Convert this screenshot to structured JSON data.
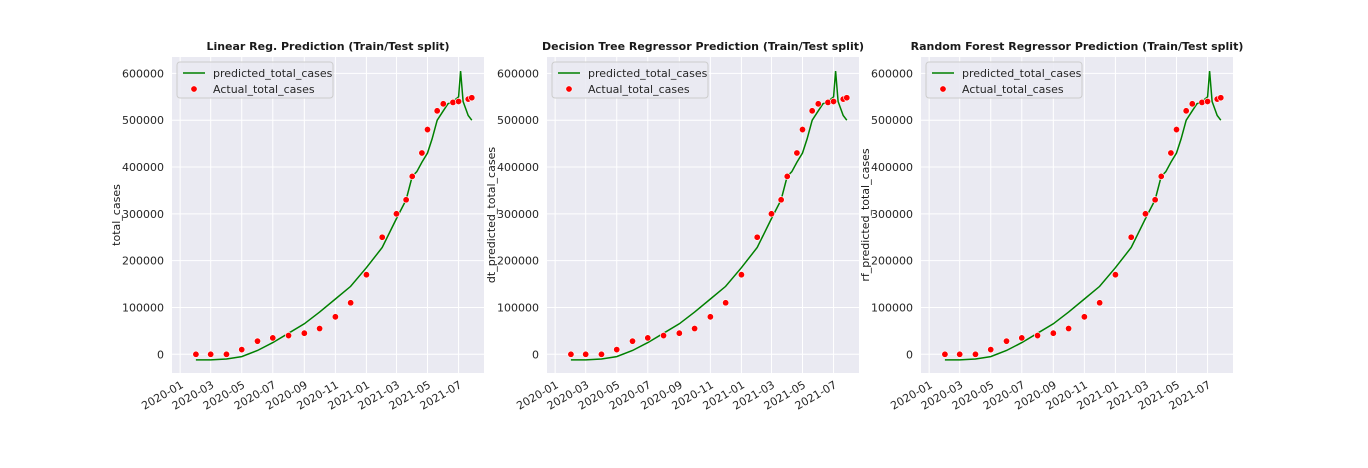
{
  "chart_data": [
    {
      "type": "line",
      "title": "Linear Reg. Prediction (Train/Test split)",
      "xlabel": "",
      "ylabel": "total_cases",
      "x_ticks": [
        "2020-01",
        "2020-03",
        "2020-05",
        "2020-07",
        "2020-09",
        "2020-11",
        "2021-01",
        "2021-03",
        "2021-05",
        "2021-07"
      ],
      "y_ticks": [
        0,
        100000,
        200000,
        300000,
        400000,
        500000,
        600000
      ],
      "y_tick_labels": [
        "0",
        "100000",
        "200000",
        "300000",
        "400000",
        "500000",
        "600000"
      ],
      "xlim": [
        "2019-12-16",
        "2021-08-20"
      ],
      "ylim": [
        -40000,
        635000
      ],
      "grid": true,
      "legend": "top-left",
      "series": [
        {
          "name": "predicted_total_cases",
          "kind": "line",
          "color": "#008000",
          "x": [
            "2020-02-01",
            "2020-03-01",
            "2020-04-01",
            "2020-05-01",
            "2020-06-01",
            "2020-07-01",
            "2020-08-01",
            "2020-09-01",
            "2020-10-01",
            "2020-11-01",
            "2020-12-01",
            "2021-01-01",
            "2021-02-01",
            "2021-03-01",
            "2021-03-20",
            "2021-04-01",
            "2021-04-10",
            "2021-04-20",
            "2021-05-01",
            "2021-05-10",
            "2021-05-20",
            "2021-06-01",
            "2021-06-10",
            "2021-06-20",
            "2021-07-01",
            "2021-07-05",
            "2021-07-10",
            "2021-07-20",
            "2021-07-27"
          ],
          "y": [
            -12000,
            -12000,
            -10000,
            -5000,
            8000,
            25000,
            45000,
            65000,
            90000,
            118000,
            145000,
            185000,
            228000,
            290000,
            330000,
            380000,
            390000,
            410000,
            430000,
            460000,
            500000,
            520000,
            535000,
            540000,
            550000,
            605000,
            540000,
            510000,
            500000
          ]
        },
        {
          "name": "Actual_total_cases",
          "kind": "scatter",
          "color": "#ff0000",
          "x": [
            "2020-02-01",
            "2020-03-01",
            "2020-04-01",
            "2020-05-01",
            "2020-06-01",
            "2020-07-01",
            "2020-08-01",
            "2020-09-01",
            "2020-10-01",
            "2020-11-01",
            "2020-12-01",
            "2021-01-01",
            "2021-02-01",
            "2021-03-01",
            "2021-03-20",
            "2021-04-01",
            "2021-04-20",
            "2021-05-01",
            "2021-05-20",
            "2021-06-01",
            "2021-06-20",
            "2021-07-01",
            "2021-07-20",
            "2021-07-27"
          ],
          "y": [
            0,
            0,
            0,
            10000,
            28000,
            35000,
            40000,
            45000,
            55000,
            80000,
            110000,
            170000,
            250000,
            300000,
            330000,
            380000,
            430000,
            480000,
            520000,
            535000,
            538000,
            540000,
            545000,
            548000
          ]
        }
      ]
    },
    {
      "type": "line",
      "title": "Decision Tree Regressor Prediction (Train/Test split)",
      "xlabel": "",
      "ylabel": "dt_predicted_total_cases",
      "x_ticks": [
        "2020-01",
        "2020-03",
        "2020-05",
        "2020-07",
        "2020-09",
        "2020-11",
        "2021-01",
        "2021-03",
        "2021-05",
        "2021-07"
      ],
      "y_ticks": [
        0,
        100000,
        200000,
        300000,
        400000,
        500000,
        600000
      ],
      "y_tick_labels": [
        "0",
        "100000",
        "200000",
        "300000",
        "400000",
        "500000",
        "600000"
      ],
      "xlim": [
        "2019-12-16",
        "2021-08-20"
      ],
      "ylim": [
        -40000,
        635000
      ],
      "grid": true,
      "legend": "top-left",
      "series": [
        {
          "name": "predicted_total_cases",
          "kind": "line",
          "color": "#008000",
          "x": [
            "2020-02-01",
            "2020-03-01",
            "2020-04-01",
            "2020-05-01",
            "2020-06-01",
            "2020-07-01",
            "2020-08-01",
            "2020-09-01",
            "2020-10-01",
            "2020-11-01",
            "2020-12-01",
            "2021-01-01",
            "2021-02-01",
            "2021-03-01",
            "2021-03-20",
            "2021-04-01",
            "2021-04-10",
            "2021-04-20",
            "2021-05-01",
            "2021-05-10",
            "2021-05-20",
            "2021-06-01",
            "2021-06-10",
            "2021-06-20",
            "2021-07-01",
            "2021-07-05",
            "2021-07-10",
            "2021-07-20",
            "2021-07-27"
          ],
          "y": [
            -12000,
            -12000,
            -10000,
            -5000,
            8000,
            25000,
            45000,
            65000,
            90000,
            118000,
            145000,
            185000,
            228000,
            290000,
            330000,
            380000,
            390000,
            410000,
            430000,
            460000,
            500000,
            520000,
            535000,
            540000,
            550000,
            605000,
            540000,
            510000,
            500000
          ]
        },
        {
          "name": "Actual_total_cases",
          "kind": "scatter",
          "color": "#ff0000",
          "x": [
            "2020-02-01",
            "2020-03-01",
            "2020-04-01",
            "2020-05-01",
            "2020-06-01",
            "2020-07-01",
            "2020-08-01",
            "2020-09-01",
            "2020-10-01",
            "2020-11-01",
            "2020-12-01",
            "2021-01-01",
            "2021-02-01",
            "2021-03-01",
            "2021-03-20",
            "2021-04-01",
            "2021-04-20",
            "2021-05-01",
            "2021-05-20",
            "2021-06-01",
            "2021-06-20",
            "2021-07-01",
            "2021-07-20",
            "2021-07-27"
          ],
          "y": [
            0,
            0,
            0,
            10000,
            28000,
            35000,
            40000,
            45000,
            55000,
            80000,
            110000,
            170000,
            250000,
            300000,
            330000,
            380000,
            430000,
            480000,
            520000,
            535000,
            538000,
            540000,
            545000,
            548000
          ]
        }
      ]
    },
    {
      "type": "line",
      "title": "Random Forest Regressor Prediction (Train/Test split)",
      "xlabel": "",
      "ylabel": "rf_predicted_total_cases",
      "x_ticks": [
        "2020-01",
        "2020-03",
        "2020-05",
        "2020-07",
        "2020-09",
        "2020-11",
        "2021-01",
        "2021-03",
        "2021-05",
        "2021-07"
      ],
      "y_ticks": [
        0,
        100000,
        200000,
        300000,
        400000,
        500000,
        600000
      ],
      "y_tick_labels": [
        "0",
        "100000",
        "200000",
        "300000",
        "400000",
        "500000",
        "600000"
      ],
      "xlim": [
        "2019-12-16",
        "2021-08-20"
      ],
      "ylim": [
        -40000,
        635000
      ],
      "grid": true,
      "legend": "top-left",
      "series": [
        {
          "name": "predicted_total_cases",
          "kind": "line",
          "color": "#008000",
          "x": [
            "2020-02-01",
            "2020-03-01",
            "2020-04-01",
            "2020-05-01",
            "2020-06-01",
            "2020-07-01",
            "2020-08-01",
            "2020-09-01",
            "2020-10-01",
            "2020-11-01",
            "2020-12-01",
            "2021-01-01",
            "2021-02-01",
            "2021-03-01",
            "2021-03-20",
            "2021-04-01",
            "2021-04-10",
            "2021-04-20",
            "2021-05-01",
            "2021-05-10",
            "2021-05-20",
            "2021-06-01",
            "2021-06-10",
            "2021-06-20",
            "2021-07-01",
            "2021-07-05",
            "2021-07-10",
            "2021-07-20",
            "2021-07-27"
          ],
          "y": [
            -12000,
            -12000,
            -10000,
            -5000,
            8000,
            25000,
            45000,
            65000,
            90000,
            118000,
            145000,
            185000,
            228000,
            290000,
            330000,
            380000,
            390000,
            410000,
            430000,
            460000,
            500000,
            520000,
            535000,
            540000,
            550000,
            605000,
            540000,
            510000,
            500000
          ]
        },
        {
          "name": "Actual_total_cases",
          "kind": "scatter",
          "color": "#ff0000",
          "x": [
            "2020-02-01",
            "2020-03-01",
            "2020-04-01",
            "2020-05-01",
            "2020-06-01",
            "2020-07-01",
            "2020-08-01",
            "2020-09-01",
            "2020-10-01",
            "2020-11-01",
            "2020-12-01",
            "2021-01-01",
            "2021-02-01",
            "2021-03-01",
            "2021-03-20",
            "2021-04-01",
            "2021-04-20",
            "2021-05-01",
            "2021-05-20",
            "2021-06-01",
            "2021-06-20",
            "2021-07-01",
            "2021-07-20",
            "2021-07-27"
          ],
          "y": [
            0,
            0,
            0,
            10000,
            28000,
            35000,
            40000,
            45000,
            55000,
            80000,
            110000,
            170000,
            250000,
            300000,
            330000,
            380000,
            430000,
            480000,
            520000,
            535000,
            538000,
            540000,
            545000,
            548000
          ]
        }
      ]
    }
  ]
}
